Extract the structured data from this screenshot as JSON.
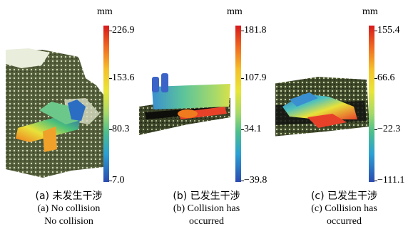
{
  "panels": [
    {
      "unit": "mm",
      "ticks": [
        "226.9",
        "153.6",
        "80.3",
        "7.0"
      ],
      "caption_zh": "(a) 未发生干涉",
      "caption_en": "(a) No collision",
      "caption_en2": "No collision"
    },
    {
      "unit": "mm",
      "ticks": [
        "181.8",
        "107.9",
        "34.1",
        "−39.8"
      ],
      "caption_zh": "(b) 已发生干涉",
      "caption_en": "(b) Collision has",
      "caption_en2": "occurred"
    },
    {
      "unit": "mm",
      "ticks": [
        "155.4",
        "66.6",
        "−22.3",
        "−111.1"
      ],
      "caption_zh": "(c) 已发生干涉",
      "caption_en": "(c) Collision has",
      "caption_en2": "occurred"
    }
  ],
  "colors": {
    "colormap": [
      "#d7191c",
      "#f06b20",
      "#f5c12a",
      "#e8e638",
      "#a6d96a",
      "#4dbf8c",
      "#2ba0d4",
      "#2b4bb0"
    ],
    "terrain": "#3f4a2a"
  }
}
